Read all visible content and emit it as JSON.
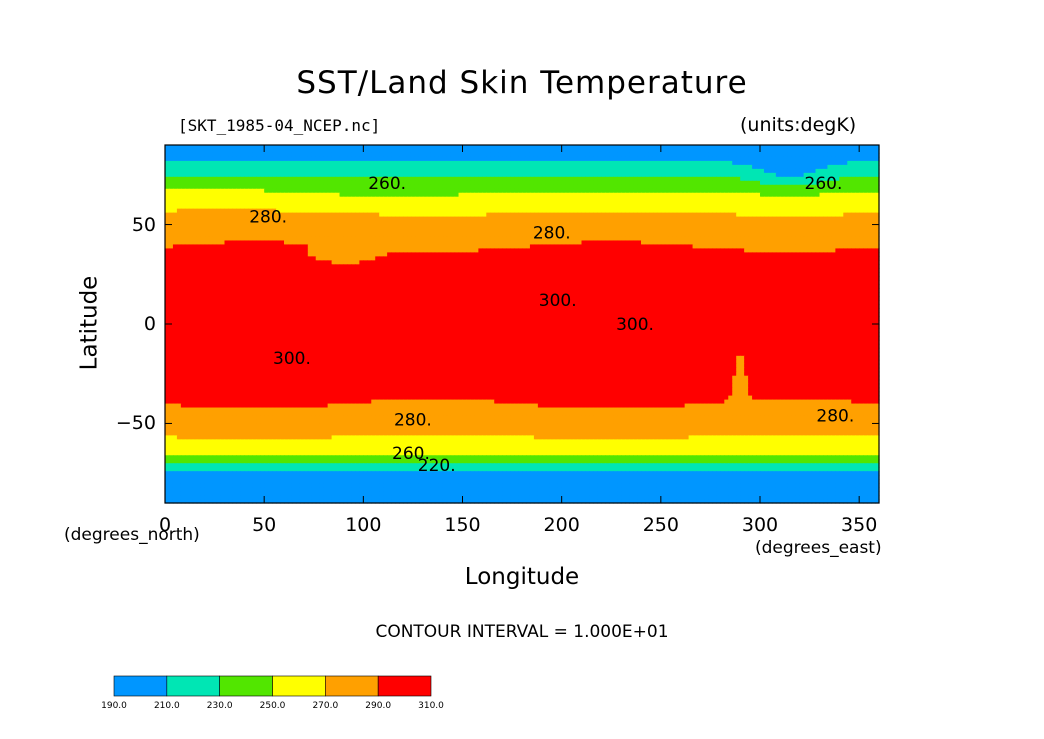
{
  "chart_data": {
    "type": "heatmap",
    "title": "SST/Land Skin Temperature",
    "subtitle_left": "[SKT_1985-04_NCEP.nc]",
    "subtitle_right": "(units:degK)",
    "xlabel": "Longitude",
    "ylabel": "Latitude",
    "xunit": "(degrees_east)",
    "yunit": "(degrees_north)",
    "xlim": [
      0,
      360
    ],
    "ylim": [
      -90,
      90
    ],
    "xticks": [
      "0",
      "50",
      "100",
      "150",
      "200",
      "250",
      "300",
      "350"
    ],
    "yticks": [
      "50",
      "0",
      "−50"
    ],
    "xtick_values": [
      0,
      50,
      100,
      150,
      200,
      250,
      300,
      350
    ],
    "ytick_values": [
      50,
      0,
      -50
    ],
    "contour_interval_text": "CONTOUR INTERVAL = 1.000E+01",
    "contour_labels": [
      {
        "text": "260.",
        "lon": 112,
        "lat": 68
      },
      {
        "text": "260.",
        "lon": 332,
        "lat": 68
      },
      {
        "text": "280.",
        "lon": 52,
        "lat": 51
      },
      {
        "text": "280.",
        "lon": 195,
        "lat": 43
      },
      {
        "text": "300.",
        "lon": 198,
        "lat": 9
      },
      {
        "text": "300.",
        "lon": 237,
        "lat": -3
      },
      {
        "text": "300.",
        "lon": 64,
        "lat": -20
      },
      {
        "text": "280.",
        "lon": 125,
        "lat": -51
      },
      {
        "text": "280.",
        "lon": 338,
        "lat": -49
      },
      {
        "text": "260.",
        "lon": 124,
        "lat": -68
      },
      {
        "text": "220.",
        "lon": 137,
        "lat": -74
      }
    ],
    "colorbar": {
      "boundaries": [
        "190.0",
        "210.0",
        "230.0",
        "250.0",
        "270.0",
        "290.0",
        "310.0"
      ],
      "colors": [
        "#0096ff",
        "#00e6b4",
        "#52e600",
        "#ffff00",
        "#ffa000",
        "#ff0000"
      ]
    },
    "bands": [
      {
        "min": 270,
        "max": 290,
        "color": "#ffa000"
      },
      {
        "min": 290,
        "max": 310,
        "color": "#ff0000"
      },
      {
        "min": 250,
        "max": 270,
        "color": "#ffff00"
      },
      {
        "min": 230,
        "max": 250,
        "color": "#52e600"
      },
      {
        "min": 210,
        "max": 230,
        "color": "#00e6b4"
      },
      {
        "min": 190,
        "max": 210,
        "color": "#0096ff"
      }
    ]
  }
}
